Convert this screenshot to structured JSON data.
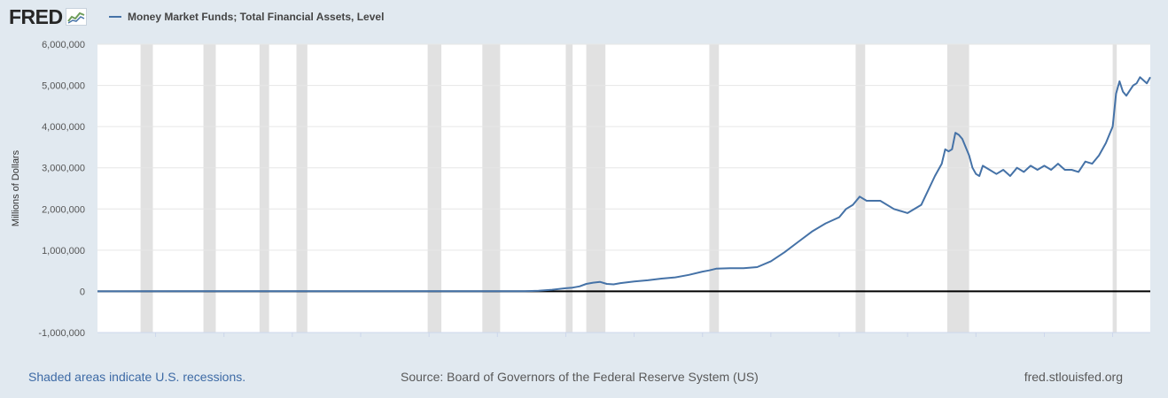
{
  "header": {
    "logo_text": "FRED",
    "logo_icon": "fred-chart-line-icon",
    "series_title": "Money Market Funds; Total Financial Assets, Level"
  },
  "footer": {
    "recessions_note": "Shaded areas indicate U.S. recessions.",
    "source": "Source: Board of Governors of the Federal Reserve System (US)",
    "site": "fred.stlouisfed.org"
  },
  "colors": {
    "series": "#4572a7",
    "recession": "#e1e1e1",
    "background": "#e1e9f0",
    "zero_line": "#000000",
    "link": "#3d6aa5"
  },
  "chart_data": {
    "type": "line",
    "title": "Money Market Funds; Total Financial Assets, Level",
    "xlabel": "",
    "ylabel": "Millions of Dollars",
    "xlim": [
      1945.75,
      2022.75
    ],
    "ylim": [
      -1000000,
      6000000
    ],
    "yticks": [
      -1000000,
      0,
      1000000,
      2000000,
      3000000,
      4000000,
      5000000,
      6000000
    ],
    "ytick_labels": [
      "-1,000,000",
      "0",
      "1,000,000",
      "2,000,000",
      "3,000,000",
      "4,000,000",
      "5,000,000",
      "6,000,000"
    ],
    "xticks": [
      1950,
      1955,
      1960,
      1965,
      1970,
      1975,
      1980,
      1985,
      1990,
      1995,
      2000,
      2005,
      2010,
      2015,
      2020
    ],
    "grid": true,
    "zero_line": true,
    "recessions": [
      [
        1948.9,
        1949.8
      ],
      [
        1953.5,
        1954.4
      ],
      [
        1957.6,
        1958.3
      ],
      [
        1960.3,
        1961.1
      ],
      [
        1969.9,
        1970.9
      ],
      [
        1973.9,
        1975.2
      ],
      [
        1980.0,
        1980.5
      ],
      [
        1981.5,
        1982.9
      ],
      [
        1990.5,
        1991.2
      ],
      [
        2001.2,
        2001.9
      ],
      [
        2007.9,
        2009.5
      ],
      [
        2020.0,
        2020.3
      ]
    ],
    "series": [
      {
        "name": "Money Market Funds; Total Financial Assets, Level",
        "x": [
          1945.75,
          1946.75,
          1951.5,
          1970,
          1975,
          1977,
          1978,
          1979,
          1980,
          1980.5,
          1981,
          1981.5,
          1982,
          1982.5,
          1983,
          1983.5,
          1984,
          1985,
          1986,
          1987,
          1988,
          1989,
          1990,
          1990.5,
          1991,
          1992,
          1993,
          1994,
          1995,
          1996,
          1997,
          1998,
          1999,
          2000,
          2000.5,
          2001,
          2001.5,
          2002,
          2003,
          2004,
          2005,
          2006,
          2007,
          2007.5,
          2007.75,
          2008,
          2008.25,
          2008.5,
          2008.75,
          2009,
          2009.5,
          2009.75,
          2010,
          2010.25,
          2010.5,
          2011,
          2011.5,
          2012,
          2012.5,
          2013,
          2013.5,
          2014,
          2014.5,
          2015,
          2015.5,
          2016,
          2016.5,
          2017,
          2017.5,
          2018,
          2018.5,
          2019,
          2019.5,
          2019.75,
          2020,
          2020.25,
          2020.5,
          2020.75,
          2021,
          2021.5,
          2021.75,
          2022,
          2022.5,
          2022.75
        ],
        "values": [
          0,
          0,
          5000,
          5000,
          5000,
          5000,
          15000,
          40000,
          75000,
          90000,
          120000,
          180000,
          210000,
          230000,
          180000,
          170000,
          200000,
          240000,
          270000,
          310000,
          340000,
          400000,
          480000,
          510000,
          550000,
          560000,
          560000,
          590000,
          730000,
          950000,
          1200000,
          1450000,
          1650000,
          1800000,
          2000000,
          2100000,
          2300000,
          2200000,
          2200000,
          2000000,
          1900000,
          2100000,
          2800000,
          3100000,
          3450000,
          3400000,
          3450000,
          3850000,
          3800000,
          3700000,
          3300000,
          3000000,
          2850000,
          2800000,
          3050000,
          2950000,
          2850000,
          2950000,
          2800000,
          3000000,
          2900000,
          3050000,
          2950000,
          3050000,
          2950000,
          3100000,
          2950000,
          2950000,
          2900000,
          3150000,
          3100000,
          3300000,
          3600000,
          3800000,
          4000000,
          4800000,
          5100000,
          4850000,
          4750000,
          5000000,
          5050000,
          5200000,
          5050000,
          5200000
        ]
      }
    ]
  }
}
